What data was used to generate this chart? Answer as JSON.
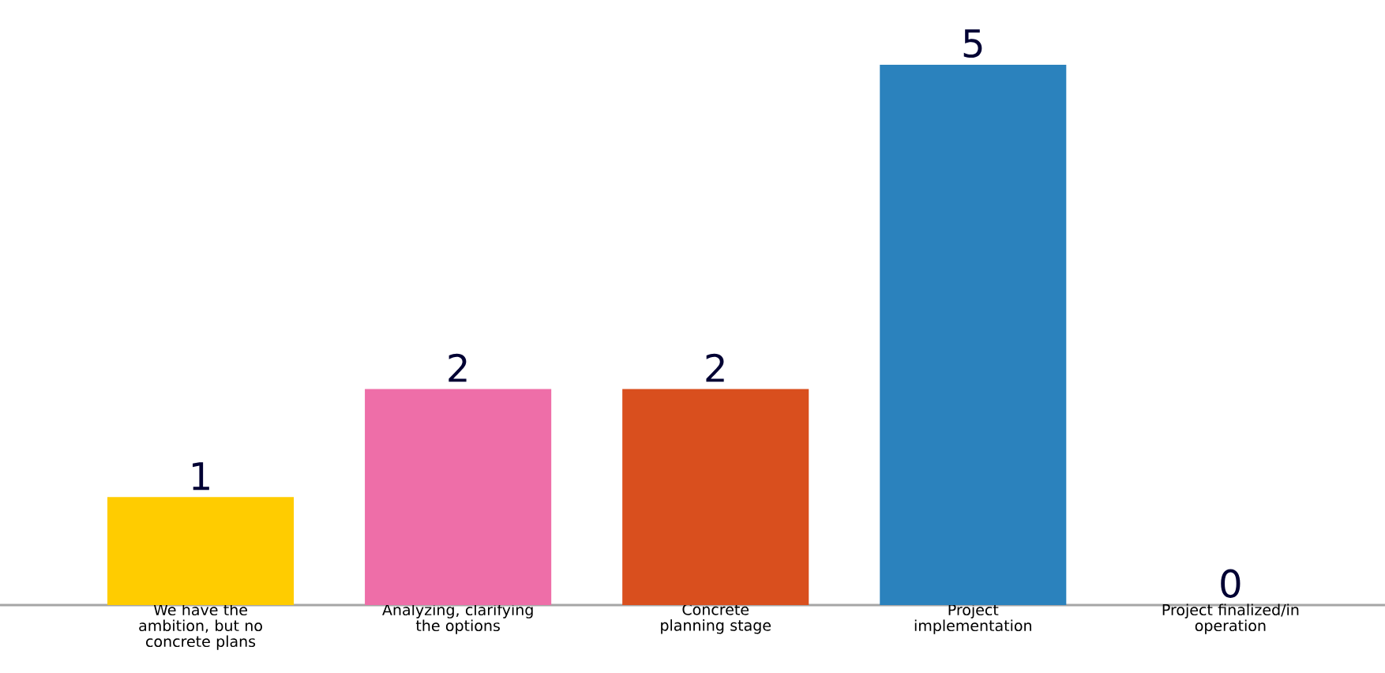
{
  "chart_data": {
    "type": "bar",
    "categories": [
      "We have the ambition, but no concrete plans",
      "Analyzing, clarifying the options",
      "Concrete planning stage",
      "Project implementation",
      "Project finalized/in operation"
    ],
    "values": [
      1,
      2,
      2,
      5,
      0
    ],
    "colors": [
      "#ffcc00",
      "#ee6ea8",
      "#d94f1e",
      "#2b82bd",
      "#2b82bd"
    ],
    "data_labels": true
  }
}
